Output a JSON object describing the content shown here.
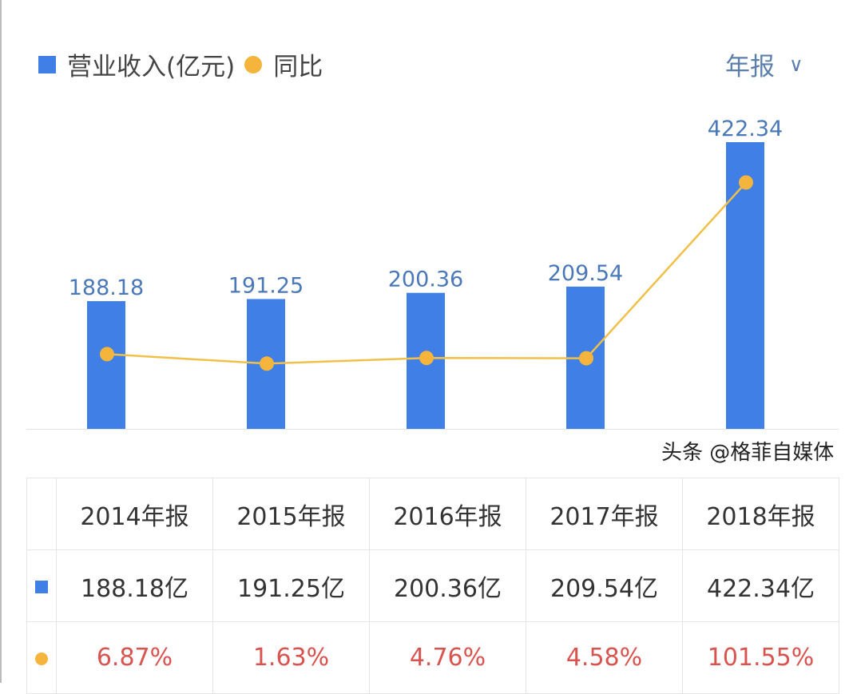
{
  "legend": {
    "bar_label": "营业收入(亿元)",
    "line_label": "同比"
  },
  "period_selector": {
    "label": "年报"
  },
  "chart_data": {
    "type": "bar+line",
    "categories": [
      "2014年报",
      "2015年报",
      "2016年报",
      "2017年报",
      "2018年报"
    ],
    "series": [
      {
        "name": "营业收入(亿元)",
        "type": "bar",
        "values": [
          188.18,
          191.25,
          200.36,
          209.54,
          422.34
        ],
        "labels": [
          "188.18",
          "191.25",
          "200.36",
          "209.54",
          "422.34"
        ],
        "color": "#3f7fe6"
      },
      {
        "name": "同比",
        "type": "line",
        "values": [
          6.87,
          1.63,
          4.76,
          4.58,
          101.55
        ],
        "color": "#f5b43b"
      }
    ],
    "legend_position": "top-left",
    "grid": false
  },
  "table": {
    "headers": [
      "2014年报",
      "2015年报",
      "2016年报",
      "2017年报",
      "2018年报"
    ],
    "revenue": [
      "188.18亿",
      "191.25亿",
      "200.36亿",
      "209.54亿",
      "422.34亿"
    ],
    "yoy": [
      "6.87%",
      "1.63%",
      "4.76%",
      "4.58%",
      "101.55%"
    ]
  },
  "watermark": "头条 @格菲自媒体"
}
